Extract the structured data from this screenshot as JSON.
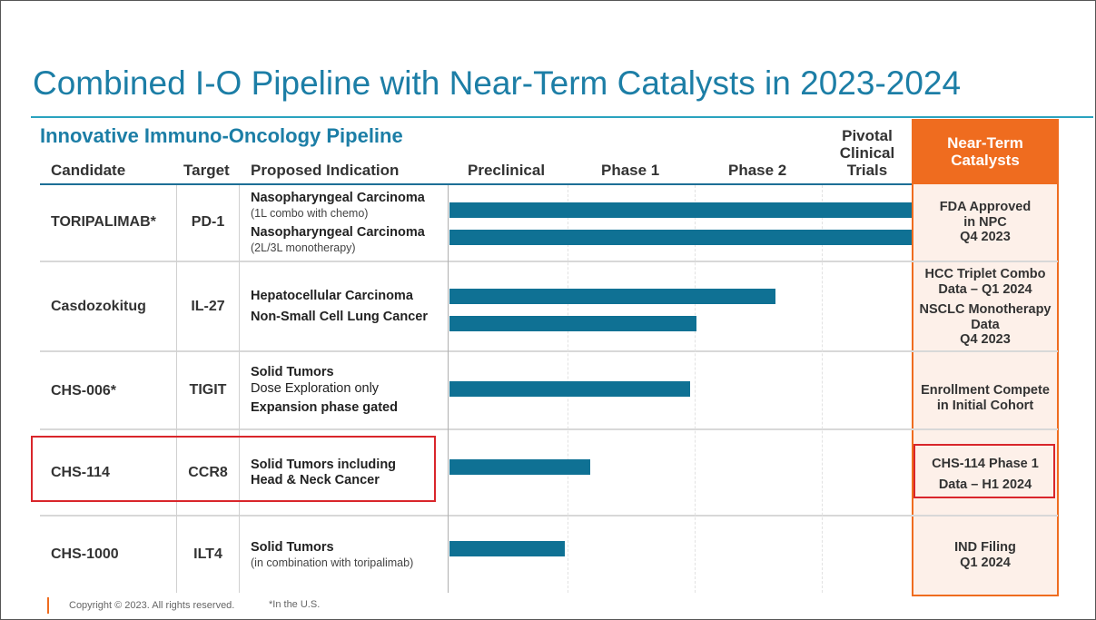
{
  "title": "Combined I-O Pipeline with Near-Term Catalysts in 2023-2024",
  "subtitle": "Innovative Immuno-Oncology Pipeline",
  "headers": {
    "candidate": "Candidate",
    "target": "Target",
    "indication": "Proposed Indication",
    "preclinical": "Preclinical",
    "phase1": "Phase 1",
    "phase2": "Phase 2",
    "pivotal": [
      "Pivotal",
      "Clinical",
      "Trials"
    ],
    "catalysts": [
      "Near-Term",
      "Catalysts"
    ]
  },
  "rows": [
    {
      "candidate": "TORIPALIMAB*",
      "target": "PD-1",
      "indications": [
        {
          "name": "Nasopharyngeal Carcinoma",
          "note": "(1L combo with chemo)",
          "progress": 1.0
        },
        {
          "name": "Nasopharyngeal Carcinoma",
          "note": "(2L/3L monotherapy)",
          "progress": 1.0
        }
      ],
      "catalysts": [
        "FDA Approved",
        "in NPC",
        "Q4 2023"
      ]
    },
    {
      "candidate": "Casdozokitug",
      "target": "IL-27",
      "indications": [
        {
          "name": "Hepatocellular Carcinoma",
          "progress": 0.705
        },
        {
          "name": "Non-Small Cell Lung Cancer",
          "progress": 0.535
        }
      ],
      "catalysts": [
        "HCC Triplet Combo",
        "Data – Q1 2024",
        "NSCLC Monotherapy",
        "Data",
        "Q4 2023"
      ]
    },
    {
      "candidate": "CHS-006*",
      "target": "TIGIT",
      "indications": [
        {
          "name": "Solid Tumors",
          "line2": "Dose Exploration only",
          "line3": "Expansion phase gated",
          "progress": 0.52
        }
      ],
      "catalysts": [
        "Enrollment Compete",
        "in Initial Cohort"
      ]
    },
    {
      "candidate": "CHS-114",
      "target": "CCR8",
      "indications": [
        {
          "name": "Solid Tumors including",
          "line2": "Head & Neck Cancer",
          "progress": 0.305
        }
      ],
      "catalysts": [
        "CHS-114 Phase 1",
        "Data – H1 2024"
      ]
    },
    {
      "candidate": "CHS-1000",
      "target": "ILT4",
      "indications": [
        {
          "name": "Solid Tumors",
          "note": "(in combination with toripalimab)",
          "progress": 0.25
        }
      ],
      "catalysts": [
        "IND Filing",
        "Q1 2024"
      ]
    }
  ],
  "footer": {
    "copyright": "Copyright © 2023. All rights reserved.",
    "footnote": "*In the U.S."
  },
  "colors": {
    "accent": "#1c7ea6",
    "bar": "#0f7194",
    "catalyst": "#ef6c1f",
    "highlight": "#d9262b"
  }
}
